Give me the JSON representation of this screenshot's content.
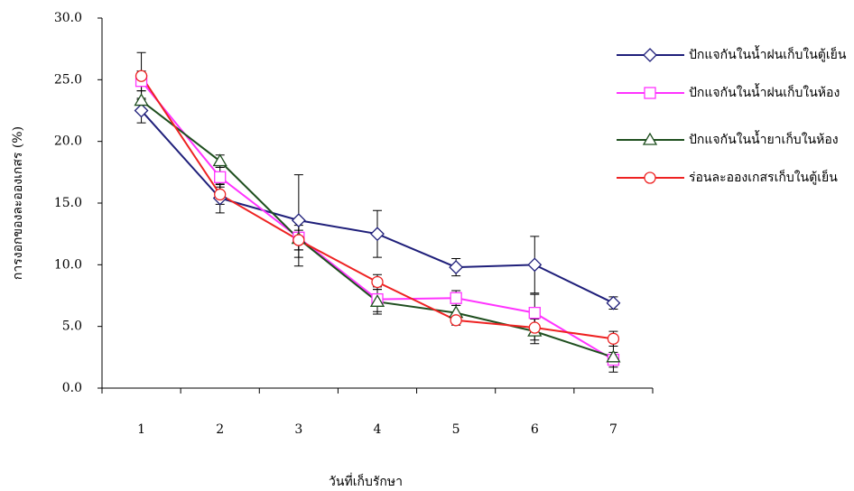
{
  "chart_data": {
    "type": "line",
    "x_label": "วันที่เก็บรักษา",
    "y_label": "การงอกของละอองเกสร (%)",
    "categories": [
      "1",
      "2",
      "3",
      "4",
      "5",
      "6",
      "7"
    ],
    "ylim": [
      0,
      30
    ],
    "yticks": [
      {
        "value": 0,
        "label": "0.0"
      },
      {
        "value": 5,
        "label": "5.0"
      },
      {
        "value": 10,
        "label": "10.0"
      },
      {
        "value": 15,
        "label": "15.0"
      },
      {
        "value": 20,
        "label": "20.0"
      },
      {
        "value": 25,
        "label": "25.0"
      },
      {
        "value": 30,
        "label": "30.0"
      }
    ],
    "series": [
      {
        "name": "ปักแจกันในน้ำฝนเก็บในตู้เย็น",
        "color": "#1f1f7a",
        "marker": "diamond",
        "values": [
          22.5,
          15.4,
          13.6,
          12.5,
          9.8,
          10.0,
          6.9
        ],
        "errors": [
          1.0,
          1.2,
          3.7,
          1.9,
          0.7,
          2.3,
          0.5
        ]
      },
      {
        "name": "ปักแจกันในน้ำฝนเก็บในห้อง",
        "color": "#ff33ff",
        "marker": "square",
        "values": [
          24.9,
          17.1,
          12.2,
          7.2,
          7.3,
          6.1,
          2.3
        ],
        "errors": [
          0.8,
          0.8,
          1.0,
          1.0,
          0.6,
          1.5,
          0.6
        ]
      },
      {
        "name": "ปักแจกันในน้ำยาเก็บในห้อง",
        "color": "#1f4f1f",
        "marker": "triangle",
        "values": [
          23.3,
          18.4,
          12.1,
          7.0,
          6.1,
          4.6,
          2.5
        ],
        "errors": [
          0.8,
          0.5,
          1.5,
          1.0,
          0.6,
          1.0,
          1.2
        ]
      },
      {
        "name": "ร่อนละอองเกสรเก็บในตู้เย็น",
        "color": "#ee2222",
        "marker": "circle",
        "values": [
          25.3,
          15.7,
          12.0,
          8.6,
          5.5,
          4.9,
          4.0
        ],
        "errors": [
          1.9,
          0.8,
          0.8,
          0.6,
          0.4,
          1.0,
          0.6
        ]
      }
    ]
  }
}
